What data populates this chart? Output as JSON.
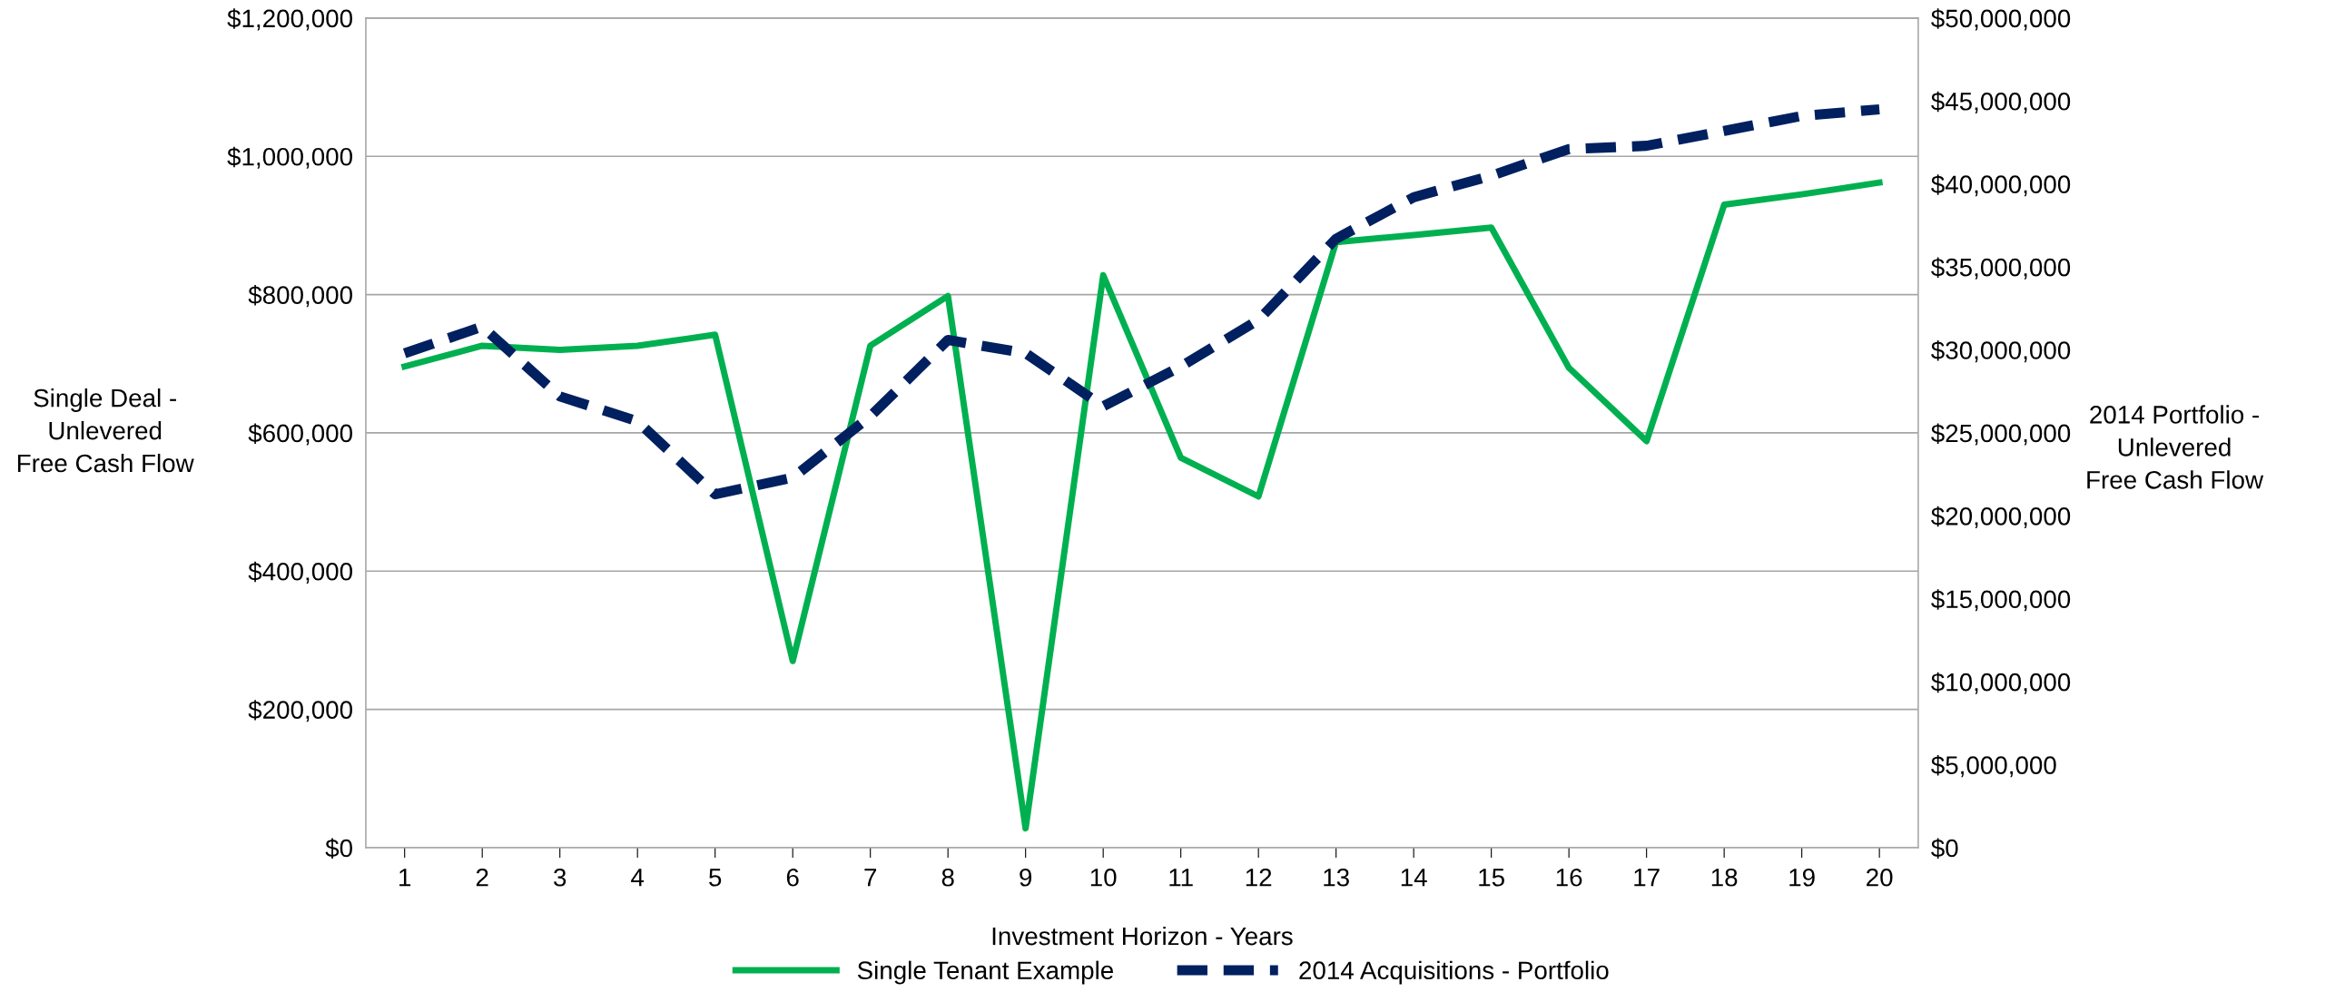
{
  "chart_data": {
    "type": "line",
    "xlabel": "Investment Horizon - Years",
    "ylabel": "Single Deal -\nUnlevered\nFree Cash Flow",
    "y2label": "2014 Portfolio -\nUnlevered\nFree Cash Flow",
    "categories": [
      "1",
      "2",
      "3",
      "4",
      "5",
      "6",
      "7",
      "8",
      "9",
      "10",
      "11",
      "12",
      "13",
      "14",
      "15",
      "16",
      "17",
      "18",
      "19",
      "20"
    ],
    "series": [
      {
        "name": "Single Tenant Example",
        "color": "#00b050",
        "line_style": "solid",
        "values": [
          696000,
          726000,
          720000,
          726000,
          742000,
          270000,
          726000,
          798000,
          28000,
          828000,
          564000,
          508000,
          876000,
          886000,
          897000,
          694000,
          588000,
          930000,
          945000,
          962000
        ]
      },
      {
        "name": "2014 Acquisitions - Portfolio",
        "color": "#002060",
        "line_style": "dashed",
        "axis": "y2",
        "values": [
          29800000,
          31400000,
          27200000,
          25700000,
          21300000,
          22300000,
          26000000,
          30600000,
          29800000,
          26600000,
          29000000,
          31800000,
          36700000,
          39200000,
          40500000,
          42100000,
          42300000,
          43200000,
          44100000,
          44500000
        ]
      }
    ],
    "ylim": [
      0,
      1200000
    ],
    "yticks": [
      {
        "value": 0,
        "label": "$0"
      },
      {
        "value": 200000,
        "label": "$200,000"
      },
      {
        "value": 400000,
        "label": "$400,000"
      },
      {
        "value": 600000,
        "label": "$600,000"
      },
      {
        "value": 800000,
        "label": "$800,000"
      },
      {
        "value": 1000000,
        "label": "$1,000,000"
      },
      {
        "value": 1200000,
        "label": "$1,200,000"
      }
    ],
    "y2lim": [
      0,
      50000000
    ],
    "y2ticks": [
      {
        "value": 0,
        "label": "$0"
      },
      {
        "value": 5000000,
        "label": "$5,000,000"
      },
      {
        "value": 10000000,
        "label": "$10,000,000"
      },
      {
        "value": 15000000,
        "label": "$15,000,000"
      },
      {
        "value": 20000000,
        "label": "$20,000,000"
      },
      {
        "value": 25000000,
        "label": "$25,000,000"
      },
      {
        "value": 30000000,
        "label": "$30,000,000"
      },
      {
        "value": 35000000,
        "label": "$35,000,000"
      },
      {
        "value": 40000000,
        "label": "$40,000,000"
      },
      {
        "value": 45000000,
        "label": "$45,000,000"
      },
      {
        "value": 50000000,
        "label": "$50,000,000"
      }
    ],
    "grid": "y",
    "legend": "bottom",
    "marker": "none"
  }
}
